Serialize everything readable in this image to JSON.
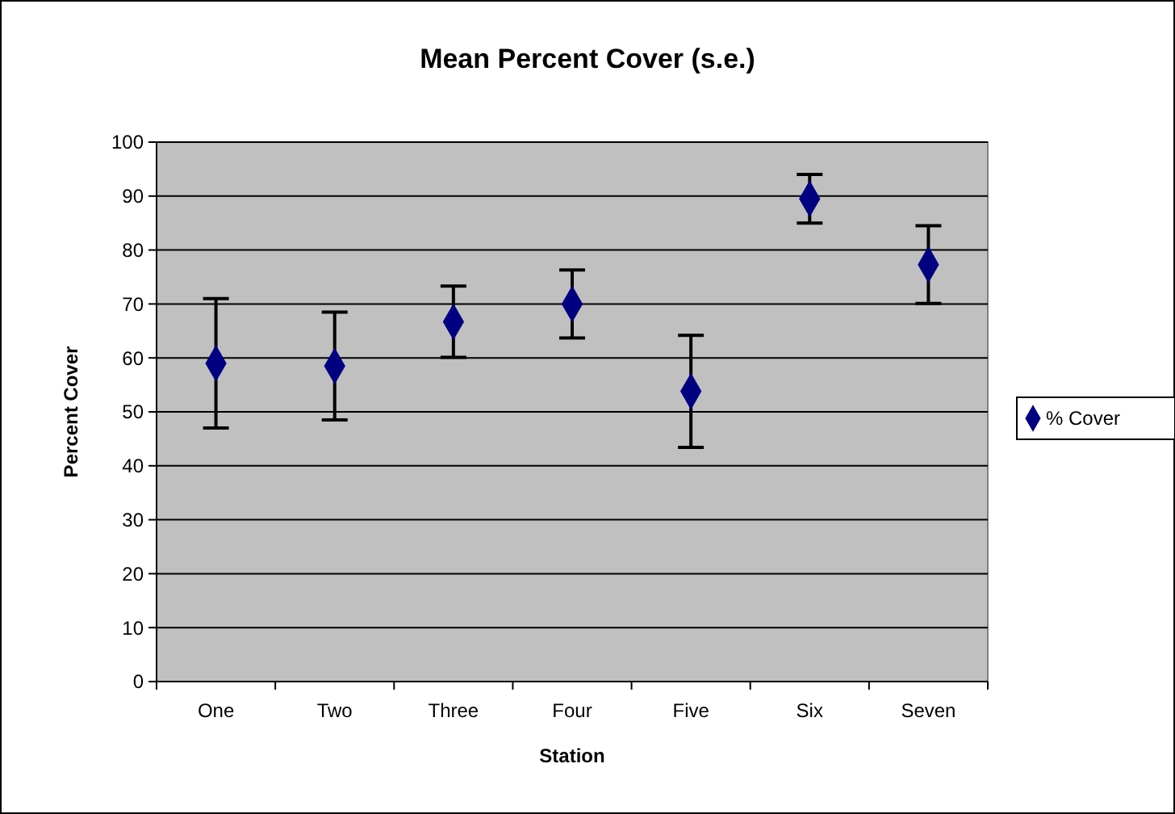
{
  "chart_data": {
    "type": "scatter",
    "title": "Mean Percent Cover (s.e.)",
    "xlabel": "Station",
    "ylabel": "Percent Cover",
    "categories": [
      "One",
      "Two",
      "Three",
      "Four",
      "Five",
      "Six",
      "Seven"
    ],
    "series": [
      {
        "name": "% Cover",
        "color": "#000080",
        "values": [
          59,
          58.5,
          66.7,
          70,
          53.8,
          89.5,
          77.3
        ],
        "errors": [
          12,
          10,
          6.6,
          6.3,
          10.4,
          4.5,
          7.2
        ]
      }
    ],
    "ylim": [
      0,
      100
    ],
    "yticks": [
      0,
      10,
      20,
      30,
      40,
      50,
      60,
      70,
      80,
      90,
      100
    ],
    "grid": "y",
    "legend": "right",
    "marker": "diamond"
  }
}
